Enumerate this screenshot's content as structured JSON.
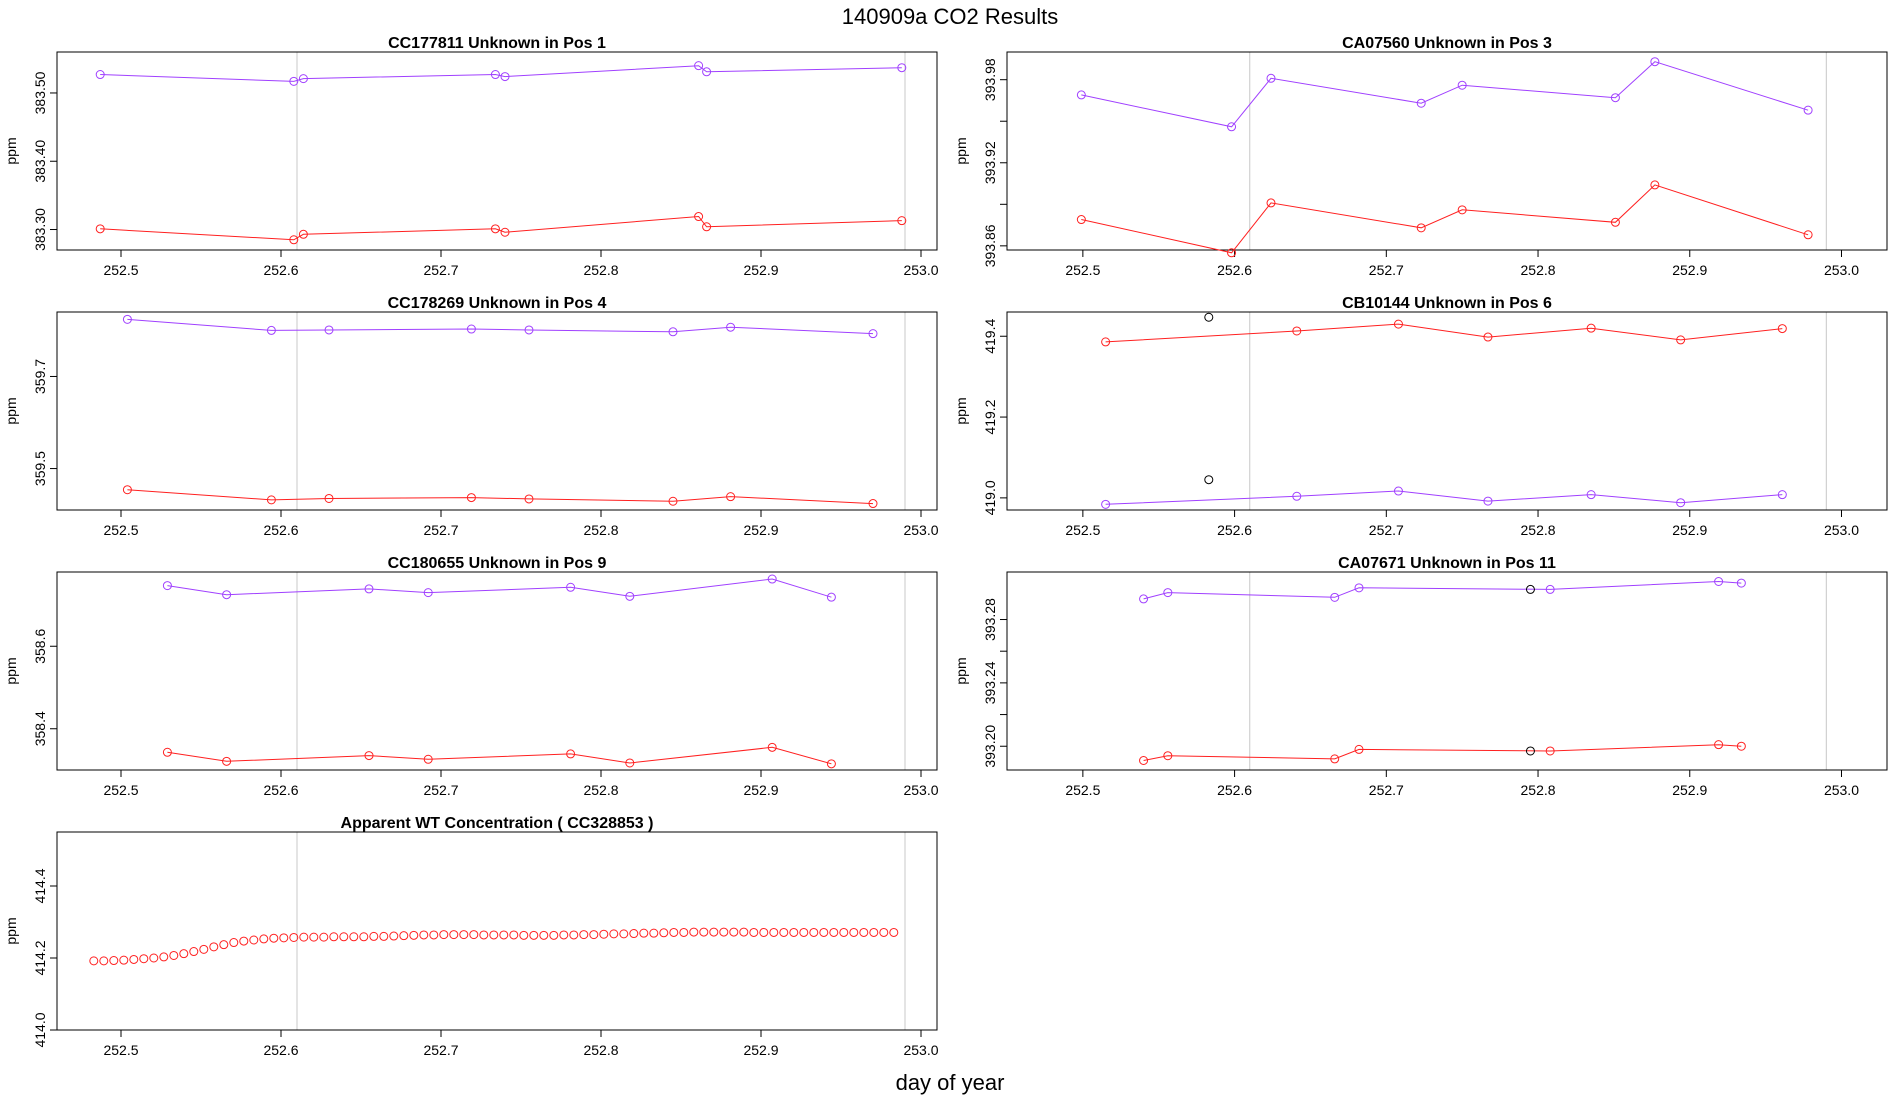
{
  "page": {
    "title": "140909a  CO2 Results",
    "x_caption": "day of year"
  },
  "chart_data": [
    {
      "type": "line",
      "title": "CC177811    Unknown in Pos 1",
      "ylabel": "ppm",
      "xlim": [
        252.46,
        253.01
      ],
      "ylim": [
        383.27,
        383.56
      ],
      "yticks": [
        383.3,
        383.4,
        383.5
      ],
      "ytick_labels": [
        "383.30",
        "383.40",
        "383.50"
      ],
      "xticks": [
        252.5,
        252.6,
        252.7,
        252.8,
        252.9,
        253.0
      ],
      "xtick_labels": [
        "252.5",
        "252.6",
        "252.7",
        "252.8",
        "252.9",
        "253.0"
      ],
      "vlines": [
        252.61,
        252.99
      ],
      "series": [
        {
          "color": "#a040ff",
          "x": [
            252.487,
            252.608,
            252.614,
            252.734,
            252.74,
            252.861,
            252.866,
            252.988
          ],
          "y": [
            383.527,
            383.517,
            383.521,
            383.527,
            383.524,
            383.54,
            383.531,
            383.537
          ]
        },
        {
          "color": "#ff2020",
          "x": [
            252.487,
            252.608,
            252.614,
            252.734,
            252.74,
            252.861,
            252.866,
            252.988
          ],
          "y": [
            383.301,
            383.285,
            383.293,
            383.301,
            383.296,
            383.319,
            383.304,
            383.313
          ]
        }
      ]
    },
    {
      "type": "line",
      "title": "CA07560    Unknown in Pos 3",
      "ylabel": "ppm",
      "xlim": [
        252.45,
        253.03
      ],
      "ylim": [
        393.857,
        394.0
      ],
      "yticks": [
        393.86,
        393.89,
        393.92,
        393.95,
        393.98
      ],
      "ytick_labels": [
        "393.86",
        "",
        "393.92",
        "",
        "393.98"
      ],
      "xticks": [
        252.5,
        252.6,
        252.7,
        252.8,
        252.9,
        253.0
      ],
      "xtick_labels": [
        "252.5",
        "252.6",
        "252.7",
        "252.8",
        "252.9",
        "253.0"
      ],
      "vlines": [
        252.61,
        252.99
      ],
      "series": [
        {
          "color": "#a040ff",
          "x": [
            252.499,
            252.598,
            252.624,
            252.723,
            252.75,
            252.851,
            252.877,
            252.978
          ],
          "y": [
            393.969,
            393.946,
            393.981,
            393.963,
            393.976,
            393.967,
            393.993,
            393.958
          ]
        },
        {
          "color": "#ff2020",
          "x": [
            252.499,
            252.598,
            252.624,
            252.723,
            252.75,
            252.851,
            252.877,
            252.978
          ],
          "y": [
            393.879,
            393.855,
            393.891,
            393.873,
            393.886,
            393.877,
            393.904,
            393.868
          ]
        }
      ]
    },
    {
      "type": "line",
      "title": "CC178269    Unknown in Pos 4",
      "ylabel": "ppm",
      "xlim": [
        252.46,
        253.01
      ],
      "ylim": [
        359.41,
        359.84
      ],
      "yticks": [
        359.5,
        359.7
      ],
      "ytick_labels": [
        "359.5",
        "359.7"
      ],
      "xticks": [
        252.5,
        252.6,
        252.7,
        252.8,
        252.9,
        253.0
      ],
      "xtick_labels": [
        "252.5",
        "252.6",
        "252.7",
        "252.8",
        "252.9",
        "253.0"
      ],
      "vlines": [
        252.61,
        252.99
      ],
      "series": [
        {
          "color": "#a040ff",
          "x": [
            252.504,
            252.594,
            252.63,
            252.719,
            252.755,
            252.845,
            252.881,
            252.97
          ],
          "y": [
            359.824,
            359.8,
            359.801,
            359.803,
            359.801,
            359.797,
            359.807,
            359.793
          ]
        },
        {
          "color": "#ff2020",
          "x": [
            252.504,
            252.594,
            252.63,
            252.719,
            252.755,
            252.845,
            252.881,
            252.97
          ],
          "y": [
            359.454,
            359.432,
            359.435,
            359.437,
            359.434,
            359.429,
            359.439,
            359.424
          ]
        }
      ]
    },
    {
      "type": "line",
      "title": "CB10144    Unknown in Pos 6",
      "ylabel": "ppm",
      "xlim": [
        252.45,
        253.03
      ],
      "ylim": [
        418.97,
        419.46
      ],
      "yticks": [
        419.0,
        419.2,
        419.4
      ],
      "ytick_labels": [
        "419.0",
        "419.2",
        "419.4"
      ],
      "xticks": [
        252.5,
        252.6,
        252.7,
        252.8,
        252.9,
        253.0
      ],
      "xtick_labels": [
        "252.5",
        "252.6",
        "252.7",
        "252.8",
        "252.9",
        "253.0"
      ],
      "vlines": [
        252.61,
        252.99
      ],
      "series": [
        {
          "color": "#a040ff",
          "x": [
            252.515,
            252.641,
            252.708,
            252.767,
            252.835,
            252.894,
            252.961
          ],
          "y": [
            418.984,
            419.004,
            419.017,
            418.992,
            419.008,
            418.988,
            419.008
          ]
        },
        {
          "color": "#ff2020",
          "x": [
            252.515,
            252.641,
            252.708,
            252.767,
            252.835,
            252.894,
            252.961
          ],
          "y": [
            419.386,
            419.413,
            419.43,
            419.398,
            419.42,
            419.391,
            419.419
          ]
        }
      ],
      "outliers": {
        "color": "#000000",
        "x": [
          252.583,
          252.583
        ],
        "y": [
          419.447,
          419.045
        ]
      }
    },
    {
      "type": "line",
      "title": "CC180655    Unknown in Pos 9",
      "ylabel": "ppm",
      "xlim": [
        252.46,
        253.01
      ],
      "ylim": [
        358.3,
        358.78
      ],
      "yticks": [
        358.4,
        358.6
      ],
      "ytick_labels": [
        "358.4",
        "358.6"
      ],
      "xticks": [
        252.5,
        252.6,
        252.7,
        252.8,
        252.9,
        253.0
      ],
      "xtick_labels": [
        "252.5",
        "252.6",
        "252.7",
        "252.8",
        "252.9",
        "253.0"
      ],
      "vlines": [
        252.61,
        252.99
      ],
      "series": [
        {
          "color": "#a040ff",
          "x": [
            252.529,
            252.566,
            252.655,
            252.692,
            252.781,
            252.818,
            252.907,
            252.944
          ],
          "y": [
            358.747,
            358.725,
            358.739,
            358.73,
            358.743,
            358.721,
            358.763,
            358.719
          ]
        },
        {
          "color": "#ff2020",
          "x": [
            252.529,
            252.566,
            252.655,
            252.692,
            252.781,
            252.818,
            252.907,
            252.944
          ],
          "y": [
            358.343,
            358.321,
            358.335,
            358.326,
            358.339,
            358.317,
            358.355,
            358.315
          ]
        }
      ]
    },
    {
      "type": "line",
      "title": "CA07671    Unknown in Pos 11",
      "ylabel": "ppm",
      "xlim": [
        252.45,
        253.03
      ],
      "ylim": [
        393.185,
        393.31
      ],
      "yticks": [
        393.2,
        393.22,
        393.24,
        393.26,
        393.28
      ],
      "ytick_labels": [
        "393.20",
        "",
        "393.24",
        "",
        "393.28"
      ],
      "xticks": [
        252.5,
        252.6,
        252.7,
        252.8,
        252.9,
        253.0
      ],
      "xtick_labels": [
        "252.5",
        "252.6",
        "252.7",
        "252.8",
        "252.9",
        "253.0"
      ],
      "vlines": [
        252.61,
        252.99
      ],
      "series": [
        {
          "color": "#a040ff",
          "x": [
            252.54,
            252.556,
            252.666,
            252.682,
            252.808,
            252.919,
            252.934
          ],
          "y": [
            393.293,
            393.297,
            393.294,
            393.3,
            393.299,
            393.304,
            393.303
          ]
        },
        {
          "color": "#ff2020",
          "x": [
            252.54,
            252.556,
            252.666,
            252.682,
            252.808,
            252.919,
            252.934
          ],
          "y": [
            393.191,
            393.194,
            393.192,
            393.198,
            393.197,
            393.201,
            393.2
          ]
        }
      ],
      "outliers": {
        "color": "#000000",
        "x": [
          252.795,
          252.795
        ],
        "y": [
          393.299,
          393.197
        ]
      }
    },
    {
      "type": "scatter",
      "title": "Apparent WT Concentration ( CC328853 )",
      "ylabel": "ppm",
      "xlim": [
        252.46,
        253.01
      ],
      "ylim": [
        414.0,
        414.55
      ],
      "yticks": [
        414.0,
        414.2,
        414.4
      ],
      "ytick_labels": [
        "414.0",
        "414.2",
        "414.4"
      ],
      "xticks": [
        252.5,
        252.6,
        252.7,
        252.8,
        252.9,
        253.0
      ],
      "xtick_labels": [
        "252.5",
        "252.6",
        "252.7",
        "252.8",
        "252.9",
        "253.0"
      ],
      "vlines": [
        252.61,
        252.99
      ],
      "series": [
        {
          "color": "#ff2020",
          "x_start": 252.483,
          "x_step": 0.00625,
          "y": [
            414.192,
            414.192,
            414.193,
            414.194,
            414.196,
            414.198,
            414.2,
            414.203,
            414.207,
            414.212,
            414.218,
            414.224,
            414.231,
            414.237,
            414.243,
            414.247,
            414.25,
            414.253,
            414.255,
            414.256,
            414.257,
            414.258,
            414.258,
            414.258,
            414.259,
            414.259,
            414.259,
            414.259,
            414.26,
            414.26,
            414.261,
            414.262,
            414.263,
            414.264,
            414.264,
            414.265,
            414.265,
            414.265,
            414.265,
            414.264,
            414.264,
            414.264,
            414.264,
            414.263,
            414.263,
            414.263,
            414.263,
            414.264,
            414.264,
            414.265,
            414.265,
            414.266,
            414.267,
            414.267,
            414.268,
            414.269,
            414.269,
            414.27,
            414.271,
            414.271,
            414.272,
            414.272,
            414.272,
            414.272,
            414.272,
            414.272,
            414.271,
            414.271,
            414.271,
            414.271,
            414.271,
            414.271,
            414.271,
            414.271,
            414.271,
            414.271,
            414.271,
            414.271,
            414.271,
            414.271,
            414.271
          ]
        }
      ]
    }
  ]
}
